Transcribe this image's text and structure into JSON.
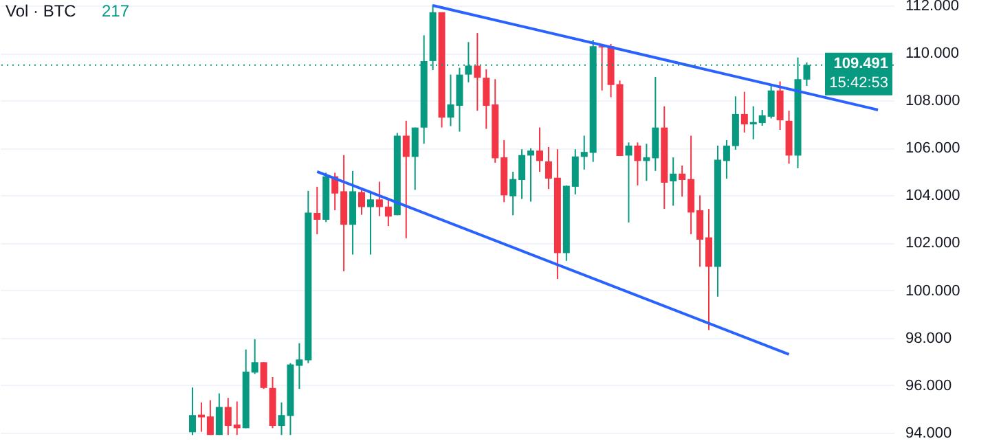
{
  "chart_data": {
    "type": "candlestick",
    "title": "Vol · BTC",
    "annotations": [
      "217",
      "15:42:53"
    ],
    "categories": [
      null,
      null,
      null,
      null,
      null,
      null,
      null,
      null,
      null,
      null,
      null,
      null,
      null,
      null,
      null,
      null,
      null,
      null,
      null,
      null,
      null,
      null,
      null,
      null,
      null,
      null,
      null,
      null,
      null,
      null,
      null,
      null,
      null,
      null,
      null,
      null,
      null,
      null,
      null,
      null,
      null,
      null,
      null,
      null,
      null,
      null,
      null,
      null,
      null,
      null,
      null,
      null,
      null,
      null,
      null,
      null,
      null,
      null,
      null,
      null,
      null,
      null,
      null,
      null,
      null,
      null,
      null,
      null,
      null,
      null,
      null,
      null,
      null,
      null,
      null,
      null,
      null,
      null
    ],
    "ohlc": [
      [
        94018,
        95904,
        93904,
        94742
      ],
      [
        94761,
        95275,
        94037,
        94647
      ],
      [
        94685,
        95370,
        93904,
        93904
      ],
      [
        93904,
        95656,
        93904,
        95085
      ],
      [
        95085,
        95466,
        93904,
        94285
      ],
      [
        94342,
        95313,
        93904,
        94190
      ],
      [
        94190,
        97504,
        94190,
        96570
      ],
      [
        96532,
        97942,
        96475,
        96970
      ],
      [
        96970,
        96970,
        95846,
        95885
      ],
      [
        95885,
        96342,
        94190,
        94285
      ],
      [
        94285,
        95275,
        93904,
        94742
      ],
      [
        94704,
        96932,
        93904,
        96875
      ],
      [
        96818,
        97771,
        95846,
        97085
      ],
      [
        97047,
        104189,
        96932,
        103275
      ],
      [
        103257,
        104362,
        102362,
        102971
      ],
      [
        102971,
        104953,
        102876,
        104800
      ],
      [
        104800,
        104953,
        103372,
        104077
      ],
      [
        104172,
        105695,
        100800,
        102762
      ],
      [
        102762,
        105029,
        101505,
        104172
      ],
      [
        104134,
        104267,
        103181,
        103505
      ],
      [
        103505,
        104191,
        101505,
        103829
      ],
      [
        103829,
        104572,
        103124,
        103505
      ],
      [
        103524,
        103829,
        102705,
        103105
      ],
      [
        103162,
        106629,
        103162,
        106515
      ],
      [
        106515,
        107143,
        102191,
        105619
      ],
      [
        105619,
        106857,
        104229,
        106857
      ],
      [
        106857,
        110743,
        106172,
        109657
      ],
      [
        109657,
        112038,
        109276,
        111714
      ],
      [
        111714,
        111714,
        106857,
        107276
      ],
      [
        107276,
        109086,
        106914,
        107829
      ],
      [
        107771,
        109372,
        106686,
        109086
      ],
      [
        109086,
        110457,
        108762,
        109467
      ],
      [
        109467,
        110838,
        107562,
        108952
      ],
      [
        108952,
        109315,
        106800,
        107771
      ],
      [
        107829,
        108895,
        105372,
        105562
      ],
      [
        105600,
        106324,
        103714,
        104000
      ],
      [
        103962,
        104991,
        103162,
        104686
      ],
      [
        104648,
        105943,
        103848,
        105696
      ],
      [
        105677,
        105981,
        103734,
        105886
      ],
      [
        105886,
        106858,
        104991,
        105448
      ],
      [
        105429,
        106038,
        104267,
        104705
      ],
      [
        104743,
        105943,
        100477,
        101562
      ],
      [
        101562,
        104419,
        101239,
        104400
      ],
      [
        104362,
        105943,
        104038,
        105639
      ],
      [
        105620,
        106515,
        105086,
        105829
      ],
      [
        105791,
        110553,
        105410,
        110286
      ],
      [
        110286,
        110381,
        108419,
        110229
      ],
      [
        110286,
        110381,
        108134,
        108648
      ],
      [
        108686,
        108838,
        105658,
        105658
      ],
      [
        105677,
        106229,
        102858,
        106096
      ],
      [
        106096,
        106229,
        104419,
        105448
      ],
      [
        105448,
        106172,
        104610,
        105600
      ],
      [
        105562,
        108991,
        105029,
        106857
      ],
      [
        106857,
        107752,
        103428,
        104533
      ],
      [
        104590,
        105600,
        103562,
        104914
      ],
      [
        104914,
        105257,
        103943,
        104648
      ],
      [
        104686,
        106514,
        102362,
        103276
      ],
      [
        103371,
        103999,
        100990,
        102133
      ],
      [
        102229,
        103429,
        98324,
        100990
      ],
      [
        100990,
        106095,
        99733,
        105504
      ],
      [
        105448,
        106323,
        104705,
        106095
      ],
      [
        106076,
        108171,
        105924,
        107428
      ],
      [
        107428,
        108362,
        106648,
        106990
      ],
      [
        106990,
        107752,
        106362,
        107086
      ],
      [
        107047,
        107600,
        106933,
        107371
      ],
      [
        107314,
        108609,
        107238,
        108419
      ],
      [
        108419,
        108800,
        106762,
        107162
      ],
      [
        107143,
        107562,
        105333,
        105676
      ],
      [
        105676,
        109809,
        105143,
        108895
      ],
      [
        108876,
        109600,
        108609,
        109491
      ],
      null,
      null,
      null,
      null,
      null,
      null,
      null,
      null
    ],
    "colors": [
      "#089981",
      "#f23645",
      "#f23645",
      "#089981",
      "#f23645",
      "#f23645",
      "#089981",
      "#089981",
      "#f23645",
      "#f23645",
      "#089981",
      "#089981",
      "#089981",
      "#089981",
      "#f23645",
      "#089981",
      "#f23645",
      "#f23645",
      "#089981",
      "#f23645",
      "#089981",
      "#f23645",
      "#f23645",
      "#089981",
      "#f23645",
      "#089981",
      "#089981",
      "#089981",
      "#f23645",
      "#089981",
      "#089981",
      "#089981",
      "#f23645",
      "#f23645",
      "#f23645",
      "#f23645",
      "#089981",
      "#089981",
      "#089981",
      "#f23645",
      "#f23645",
      "#f23645",
      "#089981",
      "#089981",
      "#089981",
      "#089981",
      "#f23645",
      "#f23645",
      "#f23645",
      "#089981",
      "#f23645",
      "#089981",
      "#089981",
      "#f23645",
      "#089981",
      "#f23645",
      "#f23645",
      "#f23645",
      "#f23645",
      "#089981",
      "#089981",
      "#089981",
      "#f23645",
      "#089981",
      "#089981",
      "#089981",
      "#f23645",
      "#f23645",
      "#089981",
      "#089981",
      null,
      null,
      null,
      null,
      null,
      null,
      null,
      null
    ],
    "series": [
      {
        "type": "line",
        "color": "#2962ff",
        "values": [
          null,
          null,
          null,
          null,
          null,
          null,
          null,
          null,
          null,
          null,
          null,
          null,
          null,
          null,
          null,
          null,
          null,
          null,
          null,
          null,
          null,
          null,
          null,
          null,
          null,
          null,
          null,
          112000,
          null,
          null,
          null,
          null,
          null,
          null,
          null,
          null,
          null,
          null,
          null,
          null,
          null,
          null,
          null,
          null,
          null,
          null,
          null,
          null,
          null,
          null,
          null,
          null,
          null,
          null,
          null,
          null,
          null,
          null,
          null,
          null,
          null,
          null,
          null,
          null,
          null,
          null,
          null,
          null,
          null,
          null,
          null,
          null,
          null,
          null,
          null,
          null,
          null,
          107600
        ]
      },
      {
        "type": "line",
        "color": "#2962ff",
        "values": [
          null,
          null,
          null,
          null,
          null,
          null,
          null,
          null,
          null,
          null,
          null,
          null,
          null,
          null,
          105000,
          null,
          null,
          null,
          null,
          null,
          null,
          null,
          null,
          null,
          null,
          null,
          null,
          null,
          null,
          null,
          null,
          null,
          null,
          null,
          null,
          null,
          null,
          null,
          null,
          null,
          null,
          null,
          null,
          null,
          null,
          null,
          null,
          null,
          null,
          null,
          null,
          null,
          null,
          null,
          null,
          null,
          null,
          null,
          null,
          null,
          null,
          null,
          null,
          null,
          null,
          null,
          null,
          97300,
          null,
          null,
          null,
          null,
          null,
          null,
          null,
          null,
          null,
          null
        ]
      }
    ],
    "ref_lines": [
      {
        "axis": "y",
        "value": 109491,
        "label": "109.491",
        "color": "#089981",
        "line_style": "dotted"
      }
    ],
    "ylim": [
      93650,
      112230
    ],
    "yticks": [
      {
        "value": 94000,
        "label": "94.000"
      },
      {
        "value": 96000,
        "label": "96.000"
      },
      {
        "value": 98000,
        "label": "98.000"
      },
      {
        "value": 100000,
        "label": "100.000"
      },
      {
        "value": 102000,
        "label": "102.000"
      },
      {
        "value": 104000,
        "label": "104.000"
      },
      {
        "value": 106000,
        "label": "106.000"
      },
      {
        "value": 108000,
        "label": "108.000"
      },
      {
        "value": 110000,
        "label": "110.000"
      },
      {
        "value": 112000,
        "label": "112.000"
      }
    ],
    "grid": "y",
    "tick_labels": "y"
  }
}
